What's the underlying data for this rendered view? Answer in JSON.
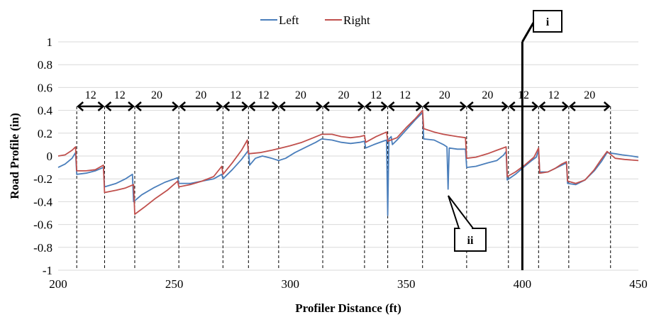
{
  "chart_data": {
    "type": "line",
    "xlabel": "Profiler Distance (ft)",
    "ylabel": "Road Profile (in)",
    "xlim": [
      200,
      450
    ],
    "ylim": [
      -1,
      1
    ],
    "x_ticks": [
      "200",
      "250",
      "300",
      "350",
      "400",
      "450"
    ],
    "y_ticks": [
      "1",
      "0.8",
      "0.6",
      "0.4",
      "0.2",
      "0",
      "-0.2",
      "-0.4",
      "-0.6",
      "-0.8",
      "-1"
    ],
    "grid": "horizontal",
    "legend_position": "top-center",
    "series": [
      {
        "name": "Left",
        "color": "#4a7ebb",
        "points": [
          [
            200,
            -0.1
          ],
          [
            203,
            -0.07
          ],
          [
            206,
            -0.02
          ],
          [
            207.5,
            0.03
          ],
          [
            208,
            -0.16
          ],
          [
            212,
            -0.15
          ],
          [
            216,
            -0.13
          ],
          [
            219.5,
            -0.1
          ],
          [
            220,
            -0.27
          ],
          [
            225,
            -0.24
          ],
          [
            229,
            -0.2
          ],
          [
            232,
            -0.16
          ],
          [
            232.5,
            -0.4
          ],
          [
            236,
            -0.34
          ],
          [
            241,
            -0.28
          ],
          [
            246,
            -0.23
          ],
          [
            251.5,
            -0.19
          ],
          [
            252,
            -0.24
          ],
          [
            257,
            -0.24
          ],
          [
            262,
            -0.22
          ],
          [
            267,
            -0.2
          ],
          [
            270.5,
            -0.16
          ],
          [
            271,
            -0.2
          ],
          [
            275,
            -0.12
          ],
          [
            279,
            -0.03
          ],
          [
            282,
            0.05
          ],
          [
            282.5,
            -0.08
          ],
          [
            285,
            -0.02
          ],
          [
            288,
            0.0
          ],
          [
            292,
            -0.02
          ],
          [
            295,
            -0.04
          ],
          [
            298,
            -0.02
          ],
          [
            302,
            0.03
          ],
          [
            307,
            0.08
          ],
          [
            311,
            0.12
          ],
          [
            313.5,
            0.15
          ],
          [
            318,
            0.14
          ],
          [
            322,
            0.12
          ],
          [
            326,
            0.11
          ],
          [
            330,
            0.12
          ],
          [
            332,
            0.13
          ],
          [
            332.5,
            0.07
          ],
          [
            336,
            0.1
          ],
          [
            340,
            0.13
          ],
          [
            341.5,
            0.14
          ],
          [
            342,
            -0.52
          ],
          [
            342.5,
            0.15
          ],
          [
            343.5,
            0.17
          ],
          [
            344,
            0.1
          ],
          [
            346,
            0.14
          ],
          [
            350,
            0.23
          ],
          [
            354,
            0.32
          ],
          [
            357,
            0.38
          ],
          [
            357.5,
            0.15
          ],
          [
            362,
            0.14
          ],
          [
            366,
            0.1
          ],
          [
            367.5,
            0.08
          ],
          [
            368,
            -0.29
          ],
          [
            368.5,
            0.07
          ],
          [
            372,
            0.06
          ],
          [
            375.5,
            0.06
          ],
          [
            376,
            -0.1
          ],
          [
            380,
            -0.09
          ],
          [
            385,
            -0.06
          ],
          [
            389,
            -0.04
          ],
          [
            392,
            0.01
          ],
          [
            393,
            0.04
          ],
          [
            393.5,
            -0.21
          ],
          [
            397,
            -0.16
          ],
          [
            401,
            -0.09
          ],
          [
            404,
            -0.04
          ],
          [
            406,
            -0.01
          ],
          [
            407,
            0.05
          ],
          [
            407.5,
            -0.14
          ],
          [
            411,
            -0.14
          ],
          [
            414,
            -0.11
          ],
          [
            417,
            -0.08
          ],
          [
            419,
            -0.06
          ],
          [
            419.5,
            -0.24
          ],
          [
            423,
            -0.25
          ],
          [
            427,
            -0.21
          ],
          [
            431,
            -0.13
          ],
          [
            434,
            -0.05
          ],
          [
            436.5,
            0.03
          ],
          [
            440,
            0.02
          ],
          [
            443,
            0.01
          ],
          [
            447,
            0.0
          ],
          [
            450,
            -0.01
          ]
        ]
      },
      {
        "name": "Right",
        "color": "#c0504d",
        "points": [
          [
            200,
            0.0
          ],
          [
            203,
            0.01
          ],
          [
            206,
            0.05
          ],
          [
            207.5,
            0.08
          ],
          [
            208,
            -0.13
          ],
          [
            212,
            -0.13
          ],
          [
            216,
            -0.12
          ],
          [
            219.5,
            -0.08
          ],
          [
            220,
            -0.32
          ],
          [
            225,
            -0.3
          ],
          [
            229,
            -0.28
          ],
          [
            232.5,
            -0.25
          ],
          [
            233,
            -0.51
          ],
          [
            237,
            -0.45
          ],
          [
            242,
            -0.37
          ],
          [
            247,
            -0.3
          ],
          [
            251.5,
            -0.22
          ],
          [
            252,
            -0.27
          ],
          [
            257,
            -0.25
          ],
          [
            262,
            -0.22
          ],
          [
            267,
            -0.18
          ],
          [
            270.5,
            -0.09
          ],
          [
            271,
            -0.16
          ],
          [
            275,
            -0.06
          ],
          [
            279,
            0.05
          ],
          [
            281.5,
            0.14
          ],
          [
            282,
            0.02
          ],
          [
            287,
            0.03
          ],
          [
            292,
            0.05
          ],
          [
            296,
            0.07
          ],
          [
            300,
            0.09
          ],
          [
            305,
            0.12
          ],
          [
            310,
            0.16
          ],
          [
            313.5,
            0.19
          ],
          [
            318,
            0.19
          ],
          [
            322,
            0.17
          ],
          [
            326,
            0.16
          ],
          [
            330,
            0.17
          ],
          [
            332,
            0.18
          ],
          [
            332.5,
            0.12
          ],
          [
            337,
            0.17
          ],
          [
            341.5,
            0.21
          ],
          [
            342,
            0.13
          ],
          [
            346,
            0.16
          ],
          [
            350,
            0.25
          ],
          [
            354,
            0.33
          ],
          [
            357,
            0.4
          ],
          [
            357.5,
            0.24
          ],
          [
            362,
            0.21
          ],
          [
            366,
            0.19
          ],
          [
            372,
            0.17
          ],
          [
            375.5,
            0.16
          ],
          [
            376,
            -0.02
          ],
          [
            380,
            -0.01
          ],
          [
            385,
            0.02
          ],
          [
            389,
            0.05
          ],
          [
            393,
            0.08
          ],
          [
            393.5,
            -0.18
          ],
          [
            397,
            -0.14
          ],
          [
            401,
            -0.08
          ],
          [
            405,
            -0.01
          ],
          [
            407,
            0.07
          ],
          [
            407.5,
            -0.15
          ],
          [
            411,
            -0.14
          ],
          [
            414,
            -0.11
          ],
          [
            417,
            -0.07
          ],
          [
            419,
            -0.05
          ],
          [
            419.5,
            -0.22
          ],
          [
            423,
            -0.24
          ],
          [
            427,
            -0.21
          ],
          [
            431,
            -0.12
          ],
          [
            434,
            -0.03
          ],
          [
            436.5,
            0.04
          ],
          [
            440,
            -0.02
          ],
          [
            444,
            -0.03
          ],
          [
            450,
            -0.04
          ]
        ]
      }
    ],
    "section_boundaries": [
      208,
      220,
      233,
      252,
      271,
      282,
      295,
      314,
      332,
      342,
      357,
      376,
      394,
      407,
      420,
      438
    ],
    "section_lengths": [
      "12",
      "12",
      "20",
      "20",
      "12",
      "12",
      "20",
      "20",
      "12",
      "12",
      "20",
      "20",
      "12",
      "12",
      "20"
    ],
    "marker_line_x": 400,
    "callouts": [
      {
        "label": "i"
      },
      {
        "label": "ii"
      }
    ]
  }
}
